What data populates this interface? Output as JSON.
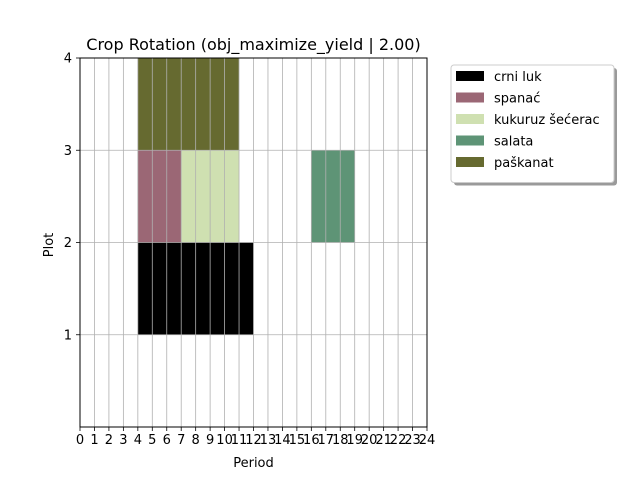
{
  "chart_data": {
    "type": "bar",
    "subtype": "gantt-grid",
    "title": "Crop Rotation (obj_maximize_yield | 2.00)",
    "xlabel": "Period",
    "ylabel": "Plot",
    "xlim": [
      0,
      24
    ],
    "ylim": [
      0,
      4
    ],
    "xticks": [
      0,
      1,
      2,
      3,
      4,
      5,
      6,
      7,
      8,
      9,
      10,
      11,
      12,
      13,
      14,
      15,
      16,
      17,
      18,
      19,
      20,
      21,
      22,
      23,
      24
    ],
    "yticks": [
      1,
      2,
      3,
      4
    ],
    "grid": true,
    "legend_position": "outside-top-right",
    "series": [
      {
        "name": "crni luk",
        "color": "#000000",
        "blocks": [
          {
            "plot": 1,
            "start": 4,
            "end": 5
          },
          {
            "plot": 1,
            "start": 5,
            "end": 6
          },
          {
            "plot": 1,
            "start": 6,
            "end": 7
          },
          {
            "plot": 1,
            "start": 7,
            "end": 8
          },
          {
            "plot": 1,
            "start": 8,
            "end": 9
          },
          {
            "plot": 1,
            "start": 9,
            "end": 10
          },
          {
            "plot": 1,
            "start": 10,
            "end": 11
          },
          {
            "plot": 1,
            "start": 11,
            "end": 12
          }
        ]
      },
      {
        "name": "spanać",
        "color": "#9b6775",
        "blocks": [
          {
            "plot": 2,
            "start": 4,
            "end": 5
          },
          {
            "plot": 2,
            "start": 5,
            "end": 6
          },
          {
            "plot": 2,
            "start": 6,
            "end": 7
          }
        ]
      },
      {
        "name": "kukuruz šećerac",
        "color": "#cfe0b1",
        "blocks": [
          {
            "plot": 2,
            "start": 7,
            "end": 8
          },
          {
            "plot": 2,
            "start": 8,
            "end": 9
          },
          {
            "plot": 2,
            "start": 9,
            "end": 10
          },
          {
            "plot": 2,
            "start": 10,
            "end": 11
          }
        ]
      },
      {
        "name": "salata",
        "color": "#5e9476",
        "blocks": [
          {
            "plot": 2,
            "start": 16,
            "end": 17
          },
          {
            "plot": 2,
            "start": 17,
            "end": 18
          },
          {
            "plot": 2,
            "start": 18,
            "end": 19
          }
        ]
      },
      {
        "name": "paškanat",
        "color": "#666a30",
        "blocks": [
          {
            "plot": 3,
            "start": 4,
            "end": 5
          },
          {
            "plot": 3,
            "start": 5,
            "end": 6
          },
          {
            "plot": 3,
            "start": 6,
            "end": 7
          },
          {
            "plot": 3,
            "start": 7,
            "end": 8
          },
          {
            "plot": 3,
            "start": 8,
            "end": 9
          },
          {
            "plot": 3,
            "start": 9,
            "end": 10
          },
          {
            "plot": 3,
            "start": 10,
            "end": 11
          }
        ]
      }
    ]
  }
}
